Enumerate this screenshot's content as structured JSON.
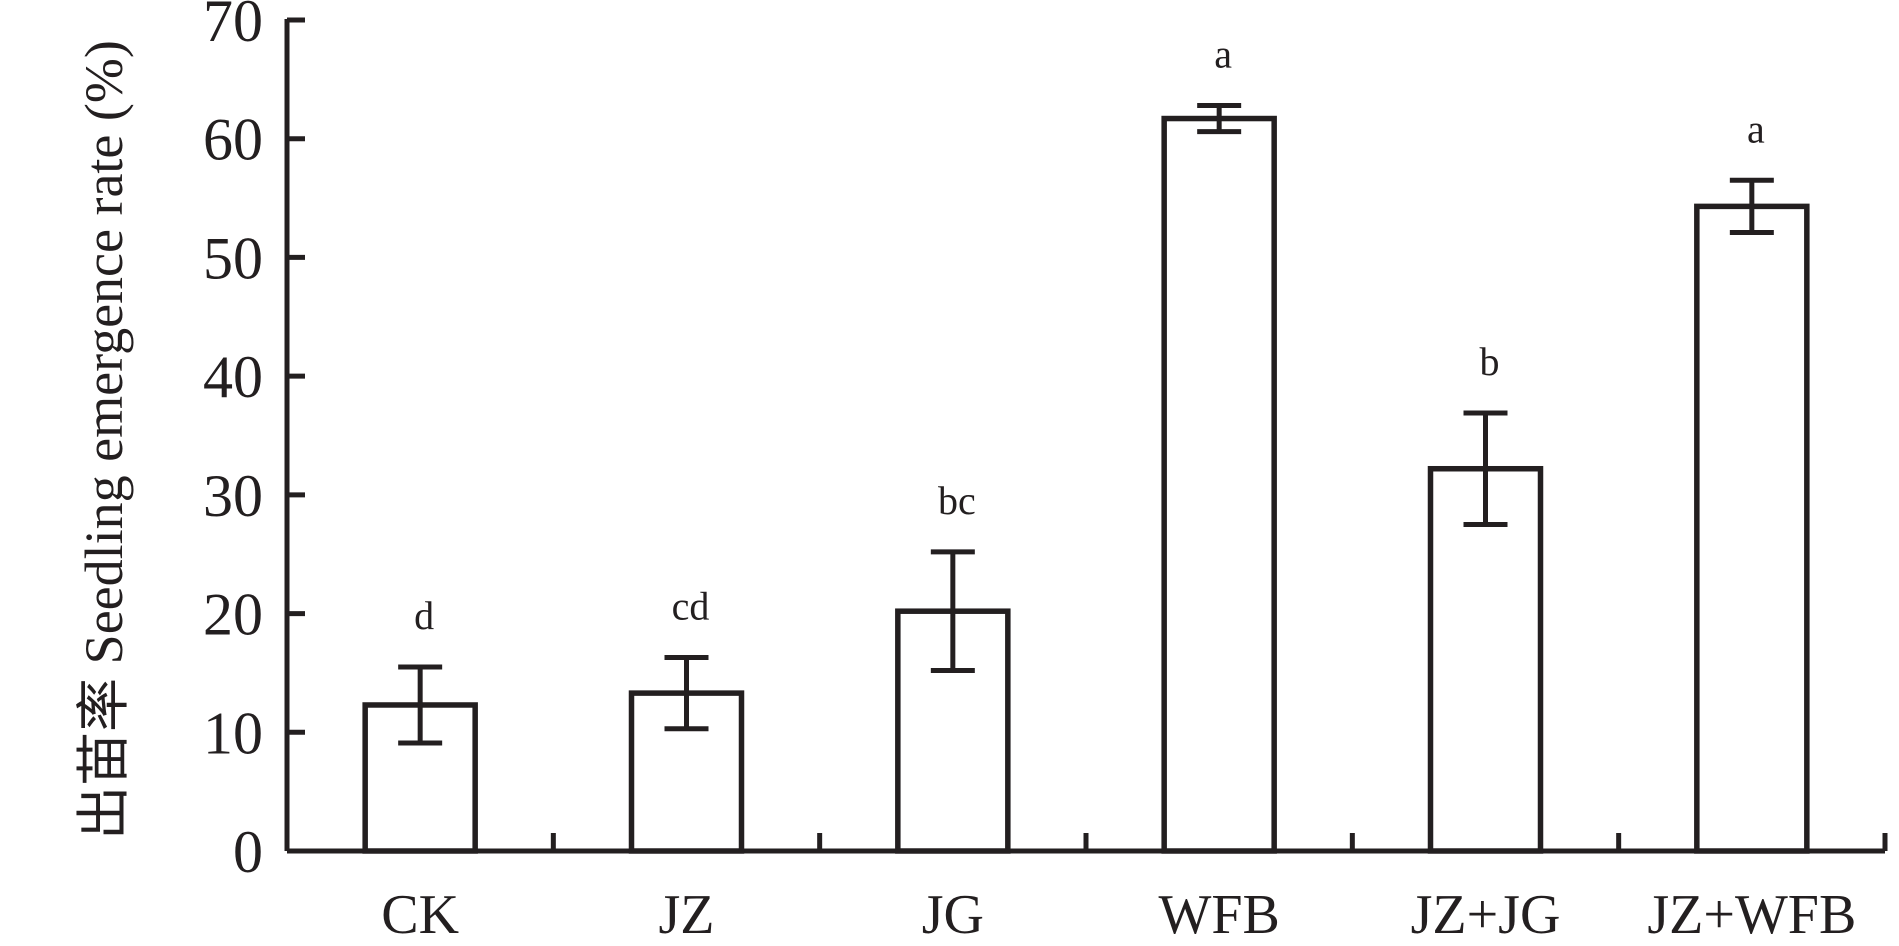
{
  "chart_data": {
    "type": "bar",
    "title": "",
    "xlabel": "",
    "ylabel": "出苗率 Seedling emergence rate (%)",
    "ylim": [
      0,
      70
    ],
    "yticks": [
      0,
      10,
      20,
      30,
      40,
      50,
      60,
      70
    ],
    "grid": false,
    "legend": "none",
    "categories": [
      "CK",
      "JZ",
      "JG",
      "WFB",
      "JZ+JG",
      "JZ+WFB"
    ],
    "series": [
      {
        "values": [
          12.3,
          13.3,
          20.2,
          61.7,
          32.2,
          54.3
        ],
        "error": [
          3.2,
          3.0,
          5.0,
          1.1,
          4.7,
          2.2
        ],
        "significance": [
          "d",
          "cd",
          "bc",
          "a",
          "b",
          "a"
        ]
      }
    ],
    "colors": {
      "bar_fill": "#ffffff",
      "stroke": "#231f20"
    }
  }
}
